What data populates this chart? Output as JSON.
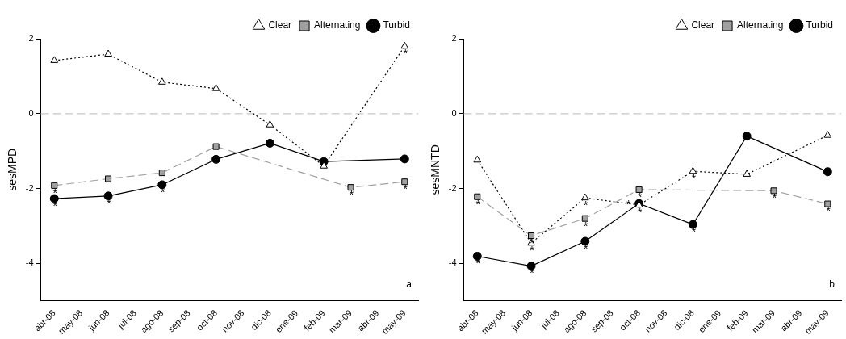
{
  "chart_data": [
    {
      "type": "line",
      "ylabel": "sesMPD",
      "categories": [
        "abr-08",
        "may-08",
        "jun-08",
        "jul-08",
        "ago-08",
        "sep-08",
        "oct-08",
        "nov-08",
        "dic-08",
        "ene-09",
        "feb-09",
        "mar-09",
        "abr-09",
        "may-09"
      ],
      "series": [
        {
          "name": "Turbid",
          "color": "#000000",
          "marker": "circle",
          "line_style": "solid",
          "values": [
            -2.27,
            null,
            -2.2,
            null,
            -1.9,
            null,
            -1.22,
            null,
            -0.79,
            null,
            -1.28,
            null,
            null,
            -1.21
          ]
        },
        {
          "name": "Alternating",
          "color": "#a0a0a0",
          "marker": "square",
          "line_style": "dashed",
          "values": [
            -1.92,
            null,
            -1.74,
            null,
            -1.58,
            null,
            -0.88,
            null,
            null,
            null,
            null,
            -1.97,
            null,
            -1.82
          ]
        },
        {
          "name": "Clear",
          "color": "#000000",
          "marker": "triangle",
          "line_style": "dotted",
          "values": [
            1.42,
            null,
            1.59,
            null,
            0.84,
            null,
            0.67,
            null,
            -0.3,
            null,
            -1.4,
            null,
            null,
            1.8
          ]
        }
      ],
      "ylim": [
        -5,
        2
      ],
      "yticks": [
        -4,
        -2,
        0,
        2
      ],
      "grid": false,
      "legend": "top right",
      "ref_lines": [
        {
          "axis": "y",
          "value": 0,
          "color": "#c8c8c8",
          "line_style": "dashed"
        }
      ],
      "annotations": [
        {
          "text": "*",
          "x": "abr-08",
          "y": -1.92
        },
        {
          "text": "*",
          "x": "abr-08",
          "y": -2.27
        },
        {
          "text": "*",
          "x": "jun-08",
          "y": -2.2
        },
        {
          "text": "*",
          "x": "ago-08",
          "y": -1.9
        },
        {
          "text": "*",
          "x": "mar-09",
          "y": -1.97
        },
        {
          "text": "*",
          "x": "may-09",
          "y": -1.82
        },
        {
          "text": "*",
          "x": "may-09",
          "y": 1.8
        },
        "a"
      ]
    },
    {
      "type": "line",
      "ylabel": "sesMNTD",
      "categories": [
        "abr-08",
        "may-08",
        "jun-08",
        "jul-08",
        "ago-08",
        "sep-08",
        "oct-08",
        "nov-08",
        "dic-08",
        "ene-09",
        "feb-09",
        "mar-09",
        "abr-09",
        "may-09"
      ],
      "series": [
        {
          "name": "Turbid",
          "color": "#000000",
          "marker": "circle",
          "line_style": "solid",
          "values": [
            -3.81,
            null,
            -4.07,
            null,
            -3.41,
            null,
            -2.4,
            null,
            -2.96,
            null,
            -0.6,
            null,
            null,
            -1.55
          ]
        },
        {
          "name": "Alternating",
          "color": "#a0a0a0",
          "marker": "square",
          "line_style": "dashed",
          "values": [
            -2.22,
            null,
            -3.26,
            null,
            -2.8,
            null,
            -2.03,
            null,
            null,
            null,
            null,
            -2.06,
            null,
            -2.41
          ]
        },
        {
          "name": "Clear",
          "color": "#000000",
          "marker": "triangle",
          "line_style": "dotted",
          "values": [
            -1.24,
            null,
            -3.46,
            null,
            -2.25,
            null,
            -2.44,
            null,
            -1.54,
            null,
            -1.62,
            null,
            null,
            -0.58
          ]
        }
      ],
      "ylim": [
        -5,
        2
      ],
      "yticks": [
        -4,
        -2,
        0,
        2
      ],
      "grid": false,
      "legend": "top right",
      "ref_lines": [
        {
          "axis": "y",
          "value": 0,
          "color": "#c8c8c8",
          "line_style": "dashed"
        }
      ],
      "annotations": [
        {
          "text": "*",
          "x": "abr-08",
          "y": -2.22
        },
        {
          "text": "*",
          "x": "abr-08",
          "y": -3.81
        },
        {
          "text": "*",
          "x": "jun-08",
          "y": -3.26
        },
        {
          "text": "*",
          "x": "jun-08",
          "y": -3.46
        },
        {
          "text": "*",
          "x": "jun-08",
          "y": -4.07
        },
        {
          "text": "*",
          "x": "ago-08",
          "y": -2.25
        },
        {
          "text": "*",
          "x": "ago-08",
          "y": -2.8
        },
        {
          "text": "*",
          "x": "ago-08",
          "y": -3.41
        },
        {
          "text": "*",
          "x": "oct-08",
          "y": -2.03
        },
        {
          "text": "*",
          "x": "oct-08",
          "y": -2.4
        },
        {
          "text": "*",
          "x": "oct-08",
          "y": -2.44
        },
        {
          "text": "*",
          "x": "dic-08",
          "y": -1.54
        },
        {
          "text": "*",
          "x": "dic-08",
          "y": -2.96
        },
        {
          "text": "*",
          "x": "mar-09",
          "y": -2.06
        },
        {
          "text": "*",
          "x": "may-09",
          "y": -2.41
        },
        "b"
      ]
    }
  ]
}
